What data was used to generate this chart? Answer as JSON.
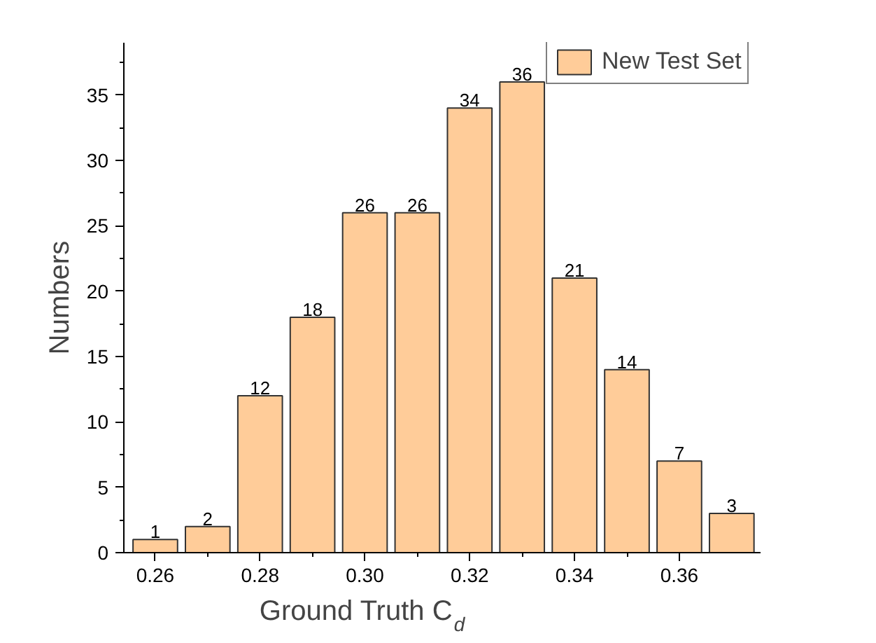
{
  "chart_data": {
    "type": "bar",
    "xlabel": "Ground Truth C$_{d}$",
    "ylabel": "Numbers",
    "x": [
      0.26,
      0.27,
      0.28,
      0.29,
      0.3,
      0.31,
      0.32,
      0.33,
      0.34,
      0.35,
      0.36,
      0.37
    ],
    "series": [
      {
        "name": "New Test Set",
        "color": "#ffcc99",
        "values": [
          1,
          2,
          12,
          18,
          26,
          26,
          34,
          36,
          21,
          14,
          7,
          3
        ]
      }
    ],
    "xlim": [
      0.254,
      0.3755
    ],
    "ylim": [
      0,
      39
    ],
    "xticks": [
      {
        "value": 0.26,
        "label": "0.26"
      },
      {
        "value": 0.28,
        "label": "0.28"
      },
      {
        "value": 0.3,
        "label": "0.30"
      },
      {
        "value": 0.32,
        "label": "0.32"
      },
      {
        "value": 0.34,
        "label": "0.34"
      },
      {
        "value": 0.36,
        "label": "0.36"
      }
    ],
    "yticks": [
      0,
      5,
      10,
      15,
      20,
      25,
      30,
      35
    ],
    "data_labels": true,
    "legend": "top right",
    "grid": false
  }
}
